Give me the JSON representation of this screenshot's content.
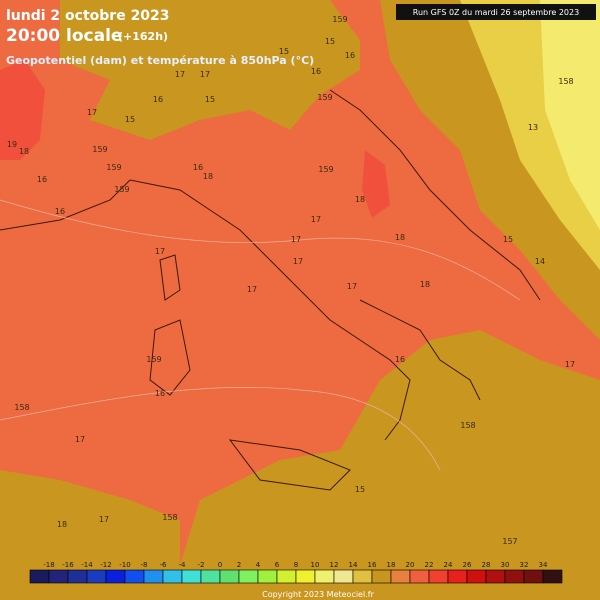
{
  "header": {
    "date": "lundi 2 octobre 2023",
    "time": "20:00 locale",
    "lead": "(+162h)",
    "subtitle": "Geopotentiel (dam) et température à 850hPa (°C)",
    "run": "Run GFS 0Z du mardi 26 septembre 2023"
  },
  "legend": {
    "labels": [
      -18,
      -16,
      -14,
      -12,
      -10,
      -8,
      -6,
      -4,
      -2,
      0,
      2,
      4,
      6,
      8,
      10,
      12,
      14,
      16,
      18,
      20,
      22,
      24,
      26,
      28,
      30,
      32,
      34
    ],
    "colors": [
      "#1a1a5e",
      "#22237a",
      "#1f2f9a",
      "#1a3cc0",
      "#0a20e0",
      "#1050f0",
      "#2090f0",
      "#30c0e8",
      "#40e0d8",
      "#50e0a0",
      "#60e070",
      "#80f060",
      "#a0f040",
      "#d0f030",
      "#f0f030",
      "#f0f070",
      "#f0e890",
      "#e0c040",
      "#c89620",
      "#e88040",
      "#f06040",
      "#f04030",
      "#e82020",
      "#d01010",
      "#b01010",
      "#901010",
      "#701010",
      "#301010"
    ]
  },
  "map_labels": [
    159,
    15,
    15,
    16,
    16,
    15,
    15,
    17,
    17,
    16,
    19,
    18,
    159,
    159,
    159,
    17,
    16,
    16,
    16,
    18,
    159,
    159,
    18,
    17,
    18,
    17,
    17,
    17,
    17,
    17,
    18,
    159,
    16,
    158,
    17,
    16,
    158,
    15,
    158,
    17,
    18,
    157,
    15,
    14,
    158,
    13,
    17
  ],
  "copyright": "Copyright 2023 Meteociel.fr"
}
